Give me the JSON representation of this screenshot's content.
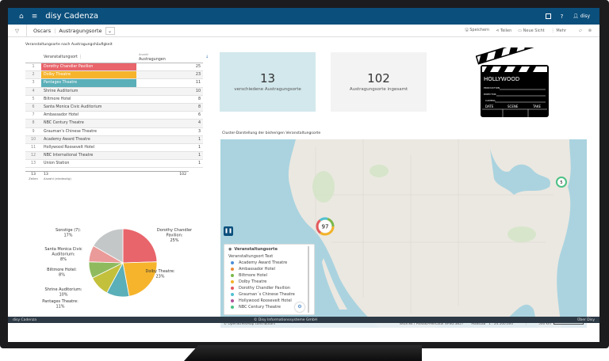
{
  "app": {
    "title": "disy Cadenza",
    "user": "disy",
    "icons": [
      "home-icon",
      "menu-icon",
      "screenshot-icon",
      "help-icon",
      "user-icon"
    ]
  },
  "toolbar": {
    "breadcrumb": [
      "Oscars",
      "Austragungsorte"
    ],
    "save": "Speichern",
    "share": "Teilen",
    "new_view": "Neue Sicht",
    "more": "Mehr"
  },
  "table": {
    "title": "Veranstaltungsorte nach Austragungshäufigkeit",
    "col_place": "Veranstaltungsort",
    "col_count_sub": "Anzahl",
    "col_count": "Austragungen",
    "rows": [
      {
        "n": "1",
        "name": "Dorothy Chandler Pavilion",
        "v": "25",
        "color": "#e8656b"
      },
      {
        "n": "2",
        "name": "Dolby Theatre",
        "v": "23",
        "color": "#f6b42d"
      },
      {
        "n": "3",
        "name": "Pantages Theatre",
        "v": "11",
        "color": "#5aafb8"
      },
      {
        "n": "4",
        "name": "Shrine Auditorium",
        "v": "10"
      },
      {
        "n": "5",
        "name": "Biltmore Hotel",
        "v": "8"
      },
      {
        "n": "6",
        "name": "Santa Monica Civic Auditorium",
        "v": "8"
      },
      {
        "n": "7",
        "name": "Ambassador Hotel",
        "v": "6"
      },
      {
        "n": "8",
        "name": "NBC Century Theatre",
        "v": "4"
      },
      {
        "n": "9",
        "name": "Grauman's Chinese Theatre",
        "v": "3"
      },
      {
        "n": "10",
        "name": "Academy Award Theatre",
        "v": "1"
      },
      {
        "n": "11",
        "name": "Hollywood Roosevelt Hotel",
        "v": "1"
      },
      {
        "n": "12",
        "name": "NBC International Theatre",
        "v": "1"
      },
      {
        "n": "13",
        "name": "Union Station",
        "v": "1"
      }
    ],
    "footer": {
      "rows": "13",
      "rows_label": "Zeilen",
      "distinct": "13",
      "distinct_label": "Anzahl (eindeutig)",
      "total": "102"
    }
  },
  "kpis": [
    {
      "value": "13",
      "label": "verschiedene Austragungsorte",
      "bg": "#d2e8ec"
    },
    {
      "value": "102",
      "label": "Austragungsorte ingesamt",
      "bg": "#f3f3f3"
    }
  ],
  "clapper": {
    "text": "HOLLYWOOD",
    "fields": [
      "PRODUCTION",
      "DIRECTOR",
      "CAMERA"
    ],
    "cols": [
      "DATE",
      "SCENE",
      "TAKE"
    ]
  },
  "chart_data": {
    "type": "pie",
    "slices": [
      {
        "label": "Dorothy Chandler Pavilion:",
        "pct": "25%",
        "value": 25,
        "color": "#e8656b"
      },
      {
        "label": "Dolby Theatre:",
        "pct": "23%",
        "value": 23,
        "color": "#f6b42d"
      },
      {
        "label": "Pantages Theatre:",
        "pct": "11%",
        "value": 11,
        "color": "#5aafb8"
      },
      {
        "label": "Shrine Auditorium:",
        "pct": "10%",
        "value": 10,
        "color": "#c3c03c"
      },
      {
        "label": "Biltmore Hotel:",
        "pct": "8%",
        "value": 8,
        "color": "#8fbb5e"
      },
      {
        "label": "Santa Monica Civic Auditorium:",
        "pct": "8%",
        "value": 8,
        "color": "#ea9a98"
      },
      {
        "label": "Sonstige (7):",
        "pct": "17%",
        "value": 17,
        "color": "#c4c7c8"
      }
    ]
  },
  "map": {
    "title": "Cluster-Darstellung der bisherigen Veranstaltungsorte",
    "cluster_la": "97",
    "cluster_ny": "5",
    "legend_title": "Veranstaltungsorte",
    "legend_sub": "Veranstaltungsort Text",
    "legend": [
      {
        "name": "Academy Award Theatre",
        "color": "#4a8fd8"
      },
      {
        "name": "Ambassador Hotel",
        "color": "#e88a3c"
      },
      {
        "name": "Biltmore Hotel",
        "color": "#79b84a"
      },
      {
        "name": "Dolby Theatre",
        "color": "#f2b22a"
      },
      {
        "name": "Dorothy Chandler Pavilion",
        "color": "#e45a5e"
      },
      {
        "name": "Grauman´s Chinese Theatre",
        "color": "#4fc1d0"
      },
      {
        "name": "Hollywood Roosevelt Hotel",
        "color": "#b2509a"
      },
      {
        "name": "NBC Century Theatre",
        "color": "#4cc084"
      }
    ],
    "attribution": "© OpenStreetMap contributors",
    "crs": "WGS 84 / Pseudo-Mercator EPSG:3857",
    "scale_label": "Maßstab",
    "scale": "1 : 24.500.000",
    "scalebar": "500 km"
  },
  "statusbar": {
    "left": "disy Cadenza",
    "center": "© Disy Informationssysteme GmbH",
    "right": "Über Disy"
  }
}
